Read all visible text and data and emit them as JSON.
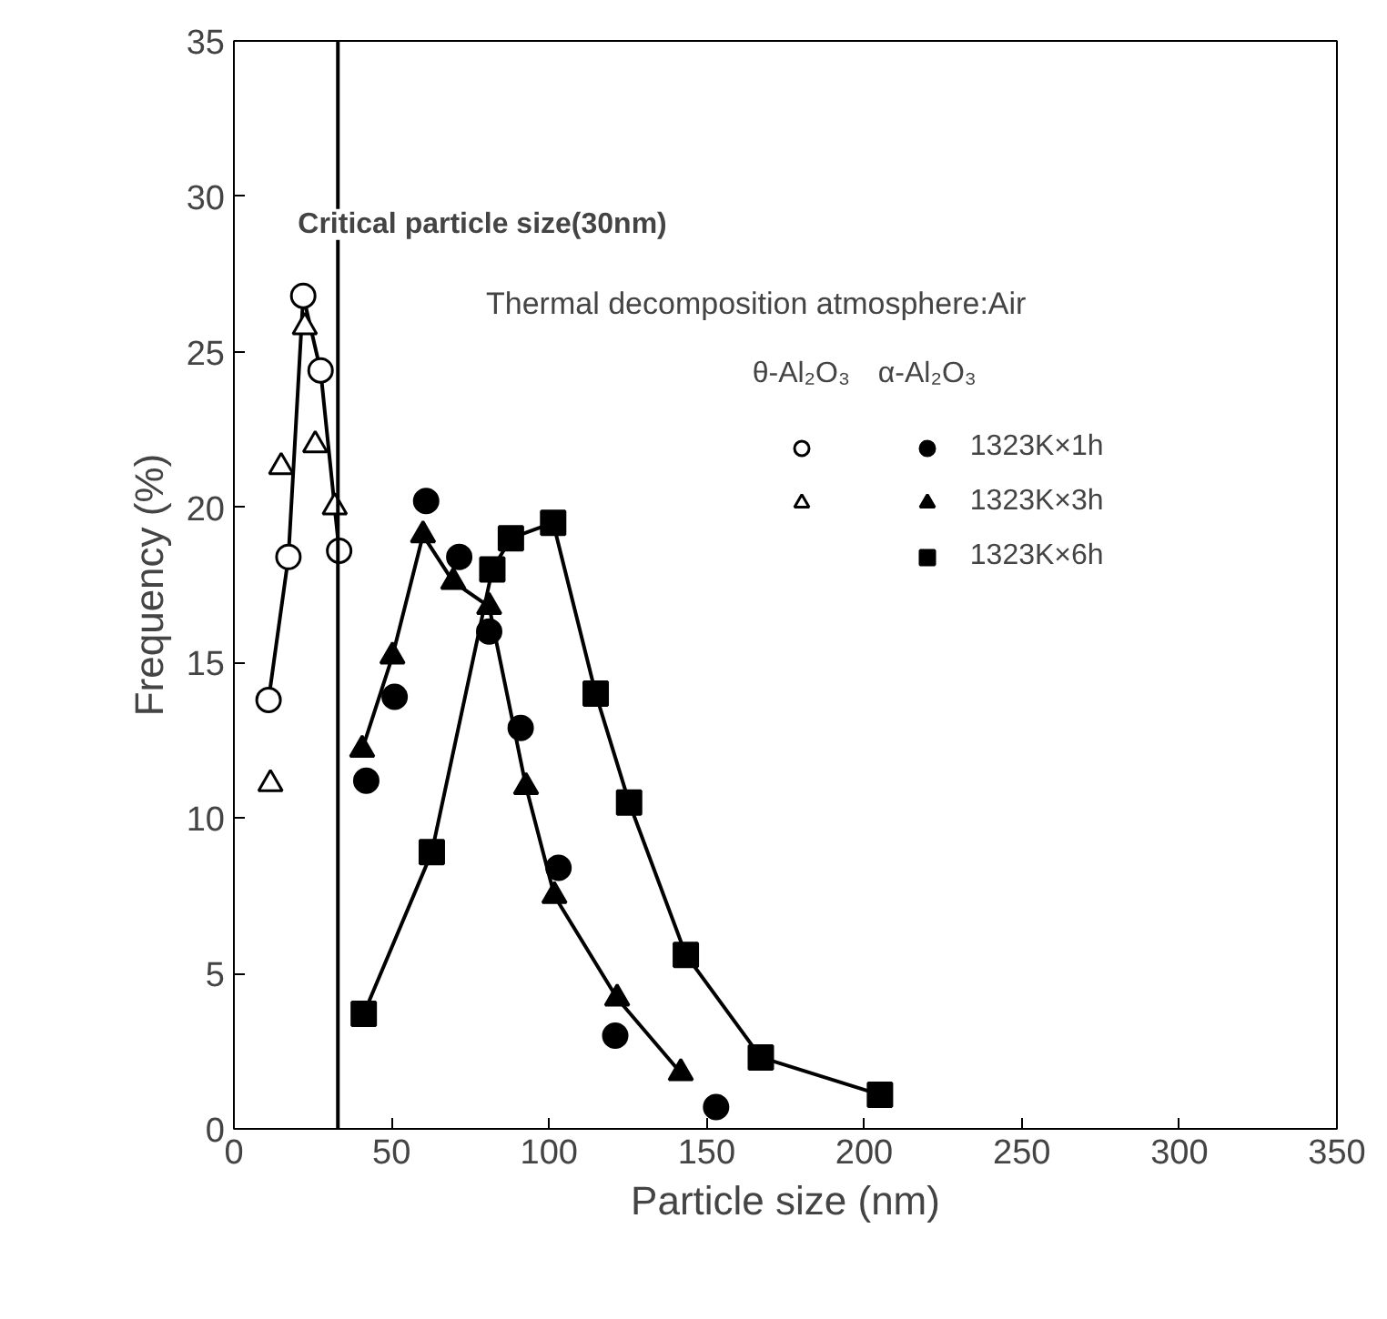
{
  "chart_data": {
    "type": "scatter",
    "xlabel": "Particle size (nm)",
    "ylabel": "Frequency (%)",
    "legend_title": "Thermal decomposition atmosphere:Air",
    "annotations": [
      "θ-Al₂O₃",
      "α-Al₂O₃"
    ],
    "xlim": [
      0,
      350
    ],
    "xticks": [
      0,
      50,
      100,
      150,
      200,
      250,
      300,
      350
    ],
    "ylim": [
      0,
      35
    ],
    "yticks": [
      0,
      5,
      10,
      15,
      20,
      25,
      30,
      35
    ],
    "grid": false,
    "legend": "top right",
    "ref_lines": [
      {
        "axis": "x",
        "value": 33,
        "label": "Critical particle size(30nm)",
        "color": "#000000"
      }
    ],
    "series": [
      {
        "type": "line",
        "marker": "circle",
        "color": "#ffffff",
        "x": [
          11,
          17.3,
          22,
          27.5,
          33.4
        ],
        "values": [
          13.8,
          18.4,
          26.8,
          24.4,
          18.6
        ]
      },
      {
        "marker": "triangle",
        "color": "#ffffff",
        "x": [
          11.6,
          15,
          22.5,
          25.8,
          32
        ],
        "values": [
          11.1,
          21.3,
          25.8,
          22,
          20
        ]
      },
      {
        "name": "1323K×1h",
        "marker": "circle",
        "color": "#000000",
        "x": [
          42,
          51,
          61,
          71.5,
          81,
          91,
          103,
          121,
          153
        ],
        "values": [
          11.2,
          13.9,
          20.2,
          18.4,
          16,
          12.9,
          8.4,
          3,
          0.7
        ]
      },
      {
        "name": "1323K×3h",
        "type": "line",
        "marker": "triangle",
        "color": "#000000",
        "x": [
          40.7,
          50.3,
          60,
          69.6,
          81,
          92.7,
          101.7,
          121.6,
          141.8
        ],
        "values": [
          12.2,
          15.2,
          19.1,
          17.6,
          16.8,
          11,
          7.5,
          4.2,
          1.8
        ]
      },
      {
        "name": "1323K×6h",
        "type": "line",
        "marker": "square",
        "color": "#000000",
        "x": [
          41.2,
          62.8,
          82,
          87.9,
          101.3,
          114.8,
          125.4,
          143.4,
          167.2,
          205
        ],
        "values": [
          3.7,
          8.9,
          18,
          19,
          19.5,
          14,
          10.5,
          5.6,
          2.3,
          1.1
        ]
      }
    ]
  }
}
